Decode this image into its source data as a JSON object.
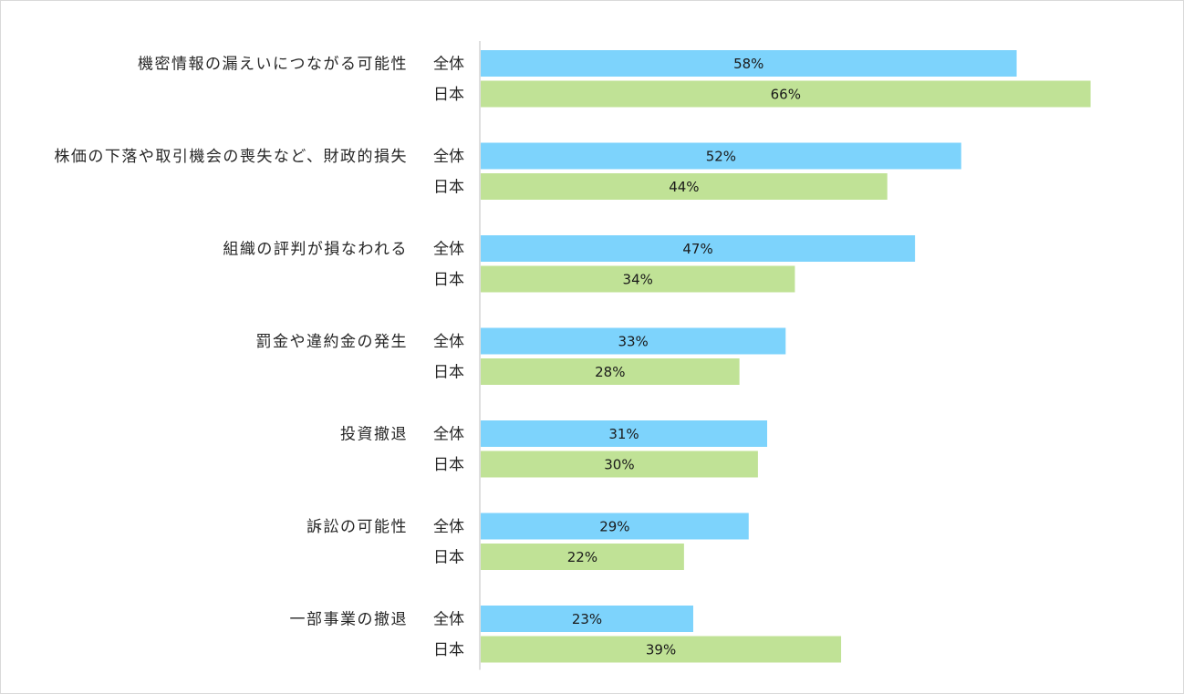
{
  "chart_data": {
    "type": "bar",
    "orientation": "horizontal",
    "categories": [
      "機密情報の漏えいにつながる可能性",
      "株価の下落や取引機会の喪失など、財政的損失",
      "組織の評判が損なわれる",
      "罰金や違約金の発生",
      "投資撤退",
      "訴訟の可能性",
      "一部事業の撤退"
    ],
    "series": [
      {
        "name": "全体",
        "color": "#7dd3fc",
        "values": [
          58,
          52,
          47,
          33,
          31,
          29,
          23
        ],
        "labels": [
          "58%",
          "52%",
          "47%",
          "33%",
          "31%",
          "29%",
          "23%"
        ]
      },
      {
        "name": "日本",
        "color": "#c0e296",
        "values": [
          66,
          44,
          34,
          28,
          30,
          22,
          39
        ],
        "labels": [
          "66%",
          "44%",
          "34%",
          "28%",
          "30%",
          "22%",
          "39%"
        ]
      }
    ],
    "unit": "%",
    "xlim": [
      0,
      67
    ],
    "grid": false,
    "legend": "none",
    "axis_color": "#bfbfbf"
  }
}
